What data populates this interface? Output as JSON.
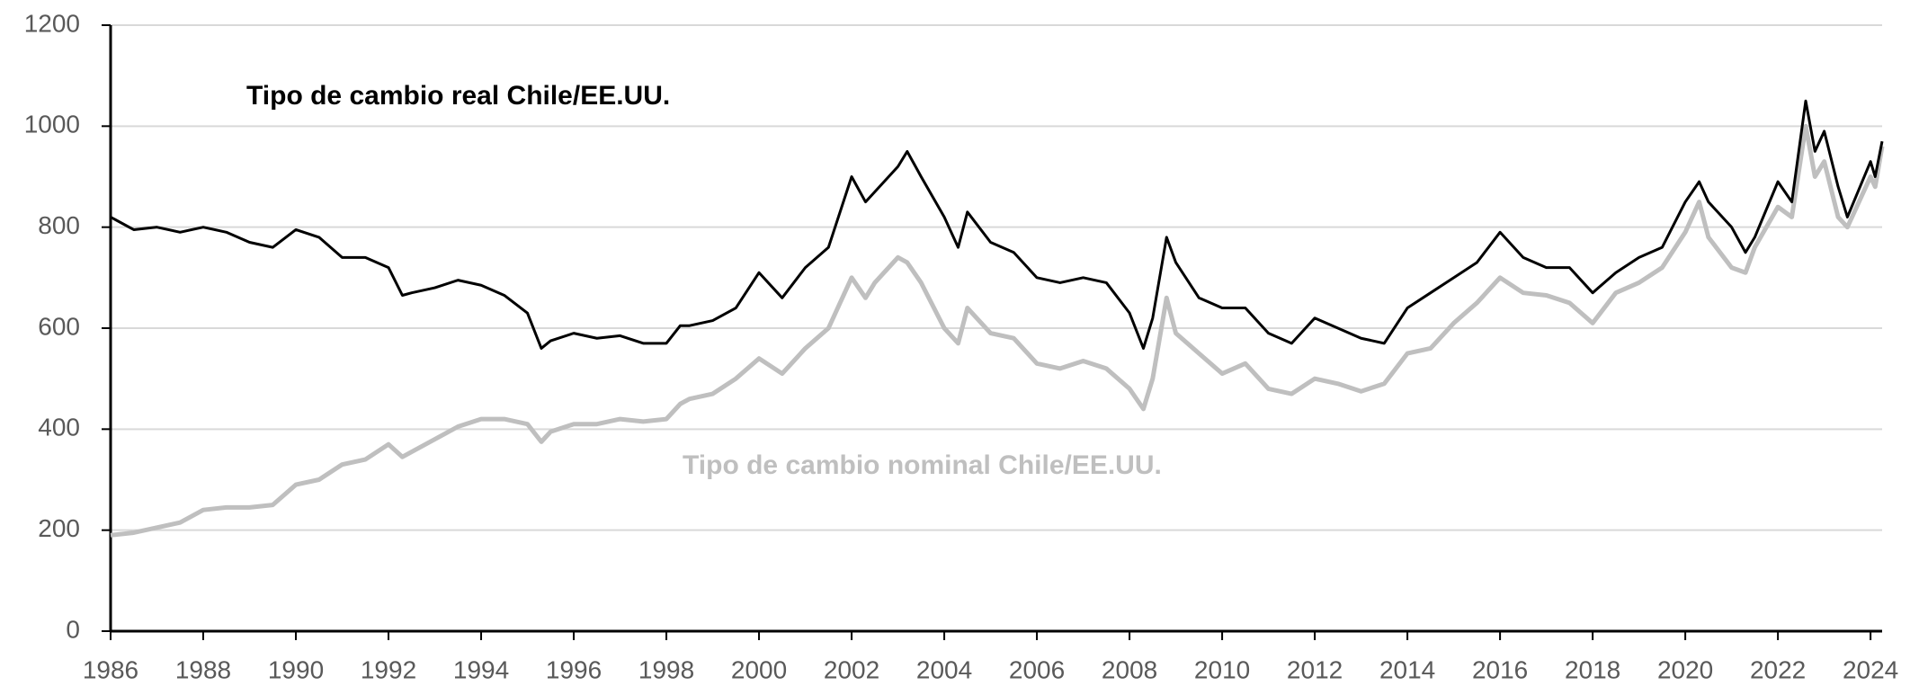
{
  "chart_data": {
    "type": "line",
    "annotations": [
      "Tipo de cambio real Chile/EE.UU.",
      "Tipo de cambio nominal Chile/EE.UU."
    ],
    "x": [
      1986,
      1986.5,
      1987,
      1987.5,
      1988,
      1988.5,
      1989,
      1989.5,
      1990,
      1990.5,
      1991,
      1991.5,
      1992,
      1992.3,
      1992.5,
      1993,
      1993.5,
      1994,
      1994.5,
      1995,
      1995.3,
      1995.5,
      1996,
      1996.5,
      1997,
      1997.5,
      1998,
      1998.3,
      1998.5,
      1999,
      1999.5,
      2000,
      2000.5,
      2001,
      2001.5,
      2002,
      2002.3,
      2002.5,
      2003,
      2003.2,
      2003.5,
      2004,
      2004.3,
      2004.5,
      2005,
      2005.5,
      2006,
      2006.5,
      2007,
      2007.5,
      2008,
      2008.3,
      2008.5,
      2008.8,
      2009,
      2009.5,
      2010,
      2010.5,
      2011,
      2011.5,
      2012,
      2012.5,
      2013,
      2013.5,
      2014,
      2014.5,
      2015,
      2015.5,
      2016,
      2016.5,
      2017,
      2017.5,
      2018,
      2018.5,
      2019,
      2019.5,
      2020,
      2020.3,
      2020.5,
      2021,
      2021.3,
      2021.5,
      2022,
      2022.3,
      2022.6,
      2022.8,
      2023,
      2023.3,
      2023.5,
      2024,
      2024.1,
      2024.25
    ],
    "series": [
      {
        "name": "Tipo de cambio real Chile/EE.UU.",
        "color": "#000000",
        "values": [
          820,
          795,
          800,
          790,
          800,
          790,
          770,
          760,
          795,
          780,
          740,
          740,
          720,
          665,
          670,
          680,
          695,
          685,
          665,
          630,
          560,
          575,
          590,
          580,
          585,
          570,
          570,
          605,
          605,
          615,
          640,
          710,
          660,
          720,
          760,
          900,
          850,
          870,
          920,
          950,
          900,
          820,
          760,
          830,
          770,
          750,
          700,
          690,
          700,
          690,
          630,
          560,
          620,
          780,
          730,
          660,
          640,
          640,
          590,
          570,
          620,
          600,
          580,
          570,
          640,
          670,
          700,
          730,
          790,
          740,
          720,
          720,
          670,
          710,
          740,
          760,
          850,
          890,
          850,
          800,
          750,
          780,
          890,
          850,
          1050,
          950,
          990,
          880,
          820,
          930,
          900,
          970
        ]
      },
      {
        "name": "Tipo de cambio nominal Chile/EE.UU.",
        "color": "#bfbfbf",
        "values": [
          190,
          195,
          205,
          215,
          240,
          245,
          245,
          250,
          290,
          300,
          330,
          340,
          370,
          345,
          355,
          380,
          405,
          420,
          420,
          410,
          375,
          395,
          410,
          410,
          420,
          415,
          420,
          450,
          460,
          470,
          500,
          540,
          510,
          560,
          600,
          700,
          660,
          690,
          740,
          730,
          690,
          600,
          570,
          640,
          590,
          580,
          530,
          520,
          535,
          520,
          480,
          440,
          500,
          660,
          590,
          550,
          510,
          530,
          480,
          470,
          500,
          490,
          475,
          490,
          550,
          560,
          610,
          650,
          700,
          670,
          665,
          650,
          610,
          670,
          690,
          720,
          790,
          850,
          780,
          720,
          710,
          760,
          840,
          820,
          1000,
          900,
          930,
          820,
          800,
          900,
          880,
          960
        ]
      }
    ],
    "xlim": [
      1986,
      2024.25
    ],
    "xticks": [
      1986,
      1988,
      1990,
      1992,
      1994,
      1996,
      1998,
      2000,
      2002,
      2004,
      2006,
      2008,
      2010,
      2012,
      2014,
      2016,
      2018,
      2020,
      2022,
      2024
    ],
    "ylim": [
      0,
      1200
    ],
    "yticks": [
      0,
      200,
      400,
      600,
      800,
      1000,
      1200
    ],
    "grid": true
  }
}
